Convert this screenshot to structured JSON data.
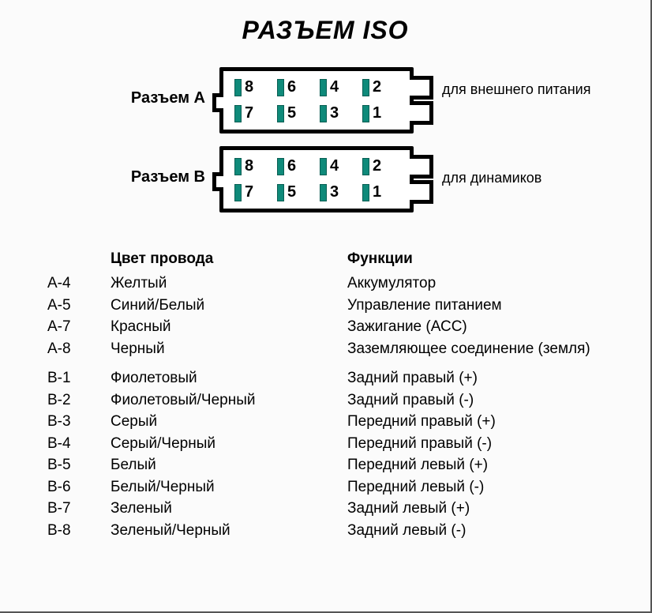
{
  "title": "РАЗЪЕМ ISO",
  "connectors": {
    "A": {
      "left_label": "Разъем А",
      "right_label": "для внешнего питания",
      "pins_top": [
        "8",
        "6",
        "4",
        "2"
      ],
      "pins_bottom": [
        "7",
        "5",
        "3",
        "1"
      ]
    },
    "B": {
      "left_label": "Разъем В",
      "right_label": "для динамиков",
      "pins_top": [
        "8",
        "6",
        "4",
        "2"
      ],
      "pins_bottom": [
        "7",
        "5",
        "3",
        "1"
      ]
    }
  },
  "pin_color": "#0f8a7a",
  "table": {
    "headers": {
      "color": "Цвет провода",
      "func": "Функции"
    },
    "group1": [
      {
        "pin": "A-4",
        "color": "Желтый",
        "func": "Аккумулятор"
      },
      {
        "pin": "A-5",
        "color": "Синий/Белый",
        "func": "Управление питанием"
      },
      {
        "pin": "A-7",
        "color": "Красный",
        "func": "Зажигание (АСС)"
      },
      {
        "pin": "A-8",
        "color": "Черный",
        "func": "Заземляющее соединение (земля)"
      }
    ],
    "group2": [
      {
        "pin": "B-1",
        "color": "Фиолетовый",
        "func": "Задний правый (+)"
      },
      {
        "pin": "B-2",
        "color": "Фиолетовый/Черный",
        "func": "Задний правый (-)"
      },
      {
        "pin": "B-3",
        "color": "Серый",
        "func": "Передний правый (+)"
      },
      {
        "pin": "B-4",
        "color": "Серый/Черный",
        "func": "Передний правый (-)"
      },
      {
        "pin": "B-5",
        "color": "Белый",
        "func": "Передний левый (+)"
      },
      {
        "pin": "B-6",
        "color": "Белый/Черный",
        "func": "Передний левый (-)"
      },
      {
        "pin": "B-7",
        "color": "Зеленый",
        "func": "Задний левый (+)"
      },
      {
        "pin": "B-8",
        "color": "Зеленый/Черный",
        "func": "Задний левый (-)"
      }
    ]
  }
}
